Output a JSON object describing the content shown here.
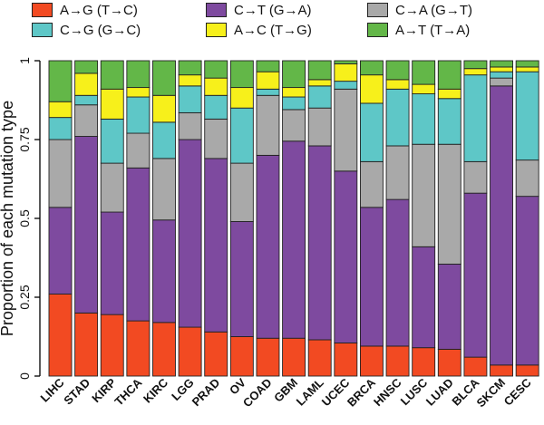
{
  "chart_data": {
    "type": "bar",
    "stacked": true,
    "ylabel": "Proportion of each mutation type",
    "ylim": [
      0,
      1
    ],
    "yticks": [
      0,
      0.25,
      0.5,
      0.75,
      1
    ],
    "ytick_labels": [
      "0",
      "0.25",
      "0.5",
      "0.75",
      "1"
    ],
    "categories": [
      "LIHC",
      "STAD",
      "KIRP",
      "THCA",
      "KIRC",
      "LGG",
      "PRAD",
      "OV",
      "COAD",
      "GBM",
      "LAML",
      "UCEC",
      "BRCA",
      "HNSC",
      "LUSC",
      "LUAD",
      "BLCA",
      "SKCM",
      "CESC"
    ],
    "series": [
      {
        "name": "A→G (T→C)",
        "color": "#f24a22",
        "values": [
          0.26,
          0.2,
          0.195,
          0.175,
          0.17,
          0.155,
          0.14,
          0.125,
          0.12,
          0.12,
          0.115,
          0.105,
          0.095,
          0.095,
          0.09,
          0.085,
          0.06,
          0.035,
          0.035
        ]
      },
      {
        "name": "C→T (G→A)",
        "color": "#7e4a9f",
        "values": [
          0.275,
          0.56,
          0.325,
          0.485,
          0.325,
          0.595,
          0.55,
          0.365,
          0.58,
          0.625,
          0.615,
          0.545,
          0.44,
          0.465,
          0.32,
          0.27,
          0.52,
          0.885,
          0.535
        ]
      },
      {
        "name": "C→A (G→T)",
        "color": "#a9a9a9",
        "values": [
          0.215,
          0.1,
          0.155,
          0.11,
          0.195,
          0.085,
          0.125,
          0.185,
          0.19,
          0.1,
          0.12,
          0.26,
          0.145,
          0.17,
          0.325,
          0.38,
          0.1,
          0.025,
          0.115
        ]
      },
      {
        "name": "C→G (G→C)",
        "color": "#5ec7c7",
        "values": [
          0.07,
          0.03,
          0.14,
          0.115,
          0.115,
          0.085,
          0.075,
          0.175,
          0.02,
          0.04,
          0.07,
          0.025,
          0.185,
          0.18,
          0.16,
          0.145,
          0.275,
          0.02,
          0.28
        ]
      },
      {
        "name": "A→C (T→G)",
        "color": "#f7f01b",
        "values": [
          0.05,
          0.07,
          0.095,
          0.03,
          0.085,
          0.035,
          0.055,
          0.065,
          0.055,
          0.03,
          0.02,
          0.055,
          0.09,
          0.03,
          0.03,
          0.03,
          0.02,
          0.015,
          0.015
        ]
      },
      {
        "name": "A→T (T→A)",
        "color": "#63b748",
        "values": [
          0.13,
          0.04,
          0.09,
          0.085,
          0.11,
          0.045,
          0.055,
          0.085,
          0.035,
          0.085,
          0.06,
          0.01,
          0.045,
          0.06,
          0.075,
          0.09,
          0.025,
          0.02,
          0.02
        ]
      }
    ],
    "legend": {
      "placement": "top",
      "order": [
        0,
        1,
        2,
        3,
        4,
        5
      ]
    }
  }
}
